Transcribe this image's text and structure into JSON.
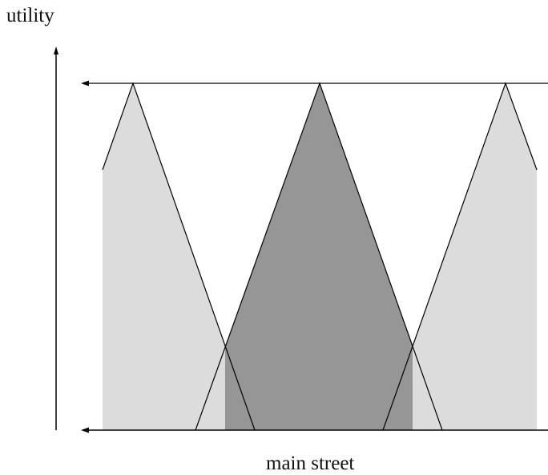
{
  "labels": {
    "y_axis": "utility",
    "x_axis": "main street"
  },
  "colors": {
    "background": "#ffffff",
    "line": "#000000",
    "light_region": "#dcdcdc",
    "dark_region": "#969696"
  }
}
